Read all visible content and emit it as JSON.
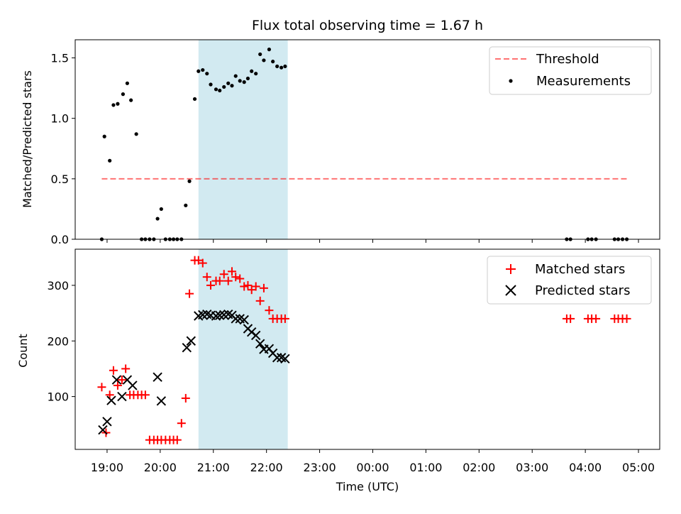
{
  "chart_data": [
    {
      "type": "scatter",
      "title": "Flux total observing time = 1.67 h",
      "ylabel": "Matched/Predicted stars",
      "xlabel": "",
      "ylim": [
        0,
        1.65
      ],
      "yticks": [
        0,
        0.5,
        1.0,
        1.5
      ],
      "ytick_labels": [
        "0.0",
        "0.5",
        "1.0",
        "1.5"
      ],
      "x_unit": "hours since 19:00 UTC",
      "shaded_range": [
        1.72,
        3.4
      ],
      "shade_color": "#add8e6",
      "legend": {
        "placement": "top-right",
        "entries": [
          "Threshold",
          "Measurements"
        ]
      },
      "threshold": {
        "name": "Threshold",
        "value": 0.5,
        "x_range": [
          -0.1,
          9.8
        ],
        "color": "#ff0000",
        "dash": true
      },
      "series": [
        {
          "name": "Measurements",
          "color": "#000000",
          "marker": "dot",
          "x": [
            -0.1,
            -0.05,
            0.05,
            0.12,
            0.2,
            0.3,
            0.38,
            0.45,
            0.55,
            0.65,
            0.72,
            0.8,
            0.88,
            0.95,
            1.02,
            1.1,
            1.18,
            1.25,
            1.32,
            1.4,
            1.48,
            1.55,
            1.65,
            1.72,
            1.8,
            1.88,
            1.95,
            2.05,
            2.12,
            2.2,
            2.28,
            2.35,
            2.42,
            2.5,
            2.58,
            2.65,
            2.72,
            2.8,
            2.88,
            2.95,
            3.05,
            3.12,
            3.2,
            3.28,
            3.35,
            8.65,
            8.72,
            9.05,
            9.12,
            9.2,
            9.55,
            9.62,
            9.7,
            9.78
          ],
          "y": [
            0.0,
            0.85,
            0.65,
            1.11,
            1.12,
            1.2,
            1.29,
            1.15,
            0.87,
            0.0,
            0.0,
            0.0,
            0.0,
            0.17,
            0.25,
            0.0,
            0.0,
            0.0,
            0.0,
            0.0,
            0.28,
            0.48,
            1.16,
            1.39,
            1.4,
            1.37,
            1.28,
            1.24,
            1.23,
            1.26,
            1.29,
            1.27,
            1.35,
            1.31,
            1.3,
            1.33,
            1.39,
            1.37,
            1.53,
            1.48,
            1.57,
            1.47,
            1.43,
            1.42,
            1.43,
            0.0,
            0.0,
            0.0,
            0.0,
            0.0,
            0.0,
            0.0,
            0.0,
            0.0
          ]
        }
      ]
    },
    {
      "type": "scatter",
      "title": "",
      "ylabel": "Count",
      "xlabel": "Time (UTC)",
      "ylim": [
        5,
        365
      ],
      "yticks": [
        100,
        200,
        300
      ],
      "ytick_labels": [
        "100",
        "200",
        "300"
      ],
      "xlim": [
        -0.6,
        10.4
      ],
      "xticks": [
        0,
        1,
        2,
        3,
        4,
        5,
        6,
        7,
        8,
        9,
        10
      ],
      "xtick_labels": [
        "19:00",
        "20:00",
        "21:00",
        "22:00",
        "23:00",
        "00:00",
        "01:00",
        "02:00",
        "03:00",
        "04:00",
        "05:00"
      ],
      "shaded_range": [
        1.72,
        3.4
      ],
      "shade_color": "#add8e6",
      "legend": {
        "placement": "top-right",
        "entries": [
          "Matched stars",
          "Predicted stars"
        ]
      },
      "series": [
        {
          "name": "Matched stars",
          "color": "#ff0000",
          "marker": "plus",
          "x": [
            -0.1,
            -0.02,
            0.05,
            0.12,
            0.2,
            0.28,
            0.35,
            0.43,
            0.5,
            0.58,
            0.65,
            0.72,
            0.8,
            0.88,
            0.95,
            1.02,
            1.1,
            1.18,
            1.25,
            1.32,
            1.4,
            1.48,
            1.55,
            1.65,
            1.72,
            1.8,
            1.88,
            1.95,
            2.05,
            2.12,
            2.2,
            2.28,
            2.35,
            2.42,
            2.5,
            2.58,
            2.65,
            2.72,
            2.8,
            2.88,
            2.95,
            3.05,
            3.12,
            3.2,
            3.28,
            3.35,
            8.65,
            8.72,
            9.05,
            9.12,
            9.2,
            9.55,
            9.62,
            9.7,
            9.78
          ],
          "y": [
            117,
            35,
            103,
            147,
            120,
            130,
            150,
            103,
            103,
            103,
            103,
            103,
            22,
            22,
            22,
            22,
            22,
            22,
            22,
            22,
            52,
            97,
            285,
            345,
            345,
            340,
            315,
            300,
            308,
            308,
            320,
            308,
            325,
            315,
            312,
            298,
            300,
            292,
            298,
            272,
            295,
            255,
            240,
            240,
            240,
            240,
            240,
            240,
            240,
            240,
            240,
            240,
            240,
            240,
            240
          ]
        },
        {
          "name": "Predicted stars",
          "color": "#000000",
          "marker": "x",
          "x": [
            -0.08,
            0.0,
            0.08,
            0.18,
            0.28,
            0.38,
            0.48,
            0.95,
            1.02,
            1.5,
            1.58,
            1.72,
            1.8,
            1.88,
            1.95,
            2.05,
            2.12,
            2.2,
            2.28,
            2.35,
            2.42,
            2.5,
            2.58,
            2.65,
            2.72,
            2.8,
            2.88,
            2.95,
            3.05,
            3.12,
            3.2,
            3.28,
            3.35
          ],
          "y": [
            40,
            55,
            93,
            130,
            100,
            130,
            120,
            135,
            92,
            188,
            200,
            245,
            247,
            248,
            246,
            245,
            246,
            247,
            248,
            246,
            240,
            240,
            238,
            222,
            216,
            210,
            195,
            185,
            186,
            178,
            170,
            170,
            168
          ]
        }
      ]
    }
  ]
}
